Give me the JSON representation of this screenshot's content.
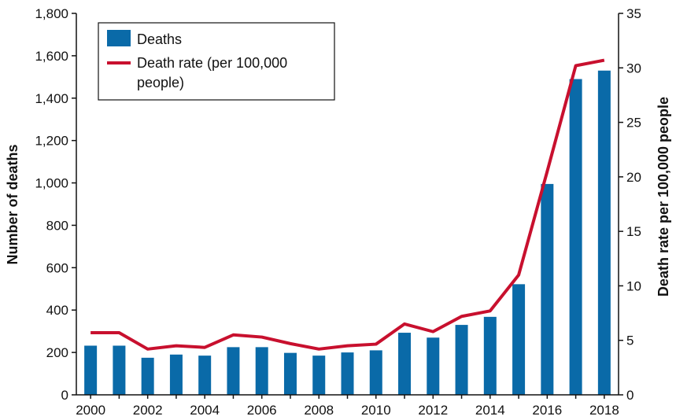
{
  "chart_data": {
    "type": "bar",
    "title": "",
    "categories": [
      "2000",
      "2001",
      "2002",
      "2003",
      "2004",
      "2005",
      "2006",
      "2007",
      "2008",
      "2009",
      "2010",
      "2011",
      "2012",
      "2013",
      "2014",
      "2015",
      "2016",
      "2017",
      "2018"
    ],
    "x_tick_labels": [
      "2000",
      "2002",
      "2004",
      "2006",
      "2008",
      "2010",
      "2012",
      "2014",
      "2016",
      "2018"
    ],
    "series": [
      {
        "name": "Deaths",
        "type": "bar",
        "axis": "left",
        "color": "#0a6aa8",
        "values": [
          232,
          232,
          175,
          190,
          185,
          225,
          225,
          198,
          185,
          200,
          210,
          293,
          270,
          330,
          368,
          522,
          995,
          1490,
          1530
        ]
      },
      {
        "name": "Death rate (per 100,000 people)",
        "legend_lines": [
          "Death rate (per 100,000",
          "people)"
        ],
        "type": "line",
        "axis": "right",
        "color": "#c8102e",
        "values": [
          5.7,
          5.7,
          4.2,
          4.5,
          4.35,
          5.5,
          5.3,
          4.7,
          4.2,
          4.5,
          4.65,
          6.5,
          5.8,
          7.2,
          7.7,
          11.0,
          20.5,
          30.2,
          30.7
        ]
      }
    ],
    "ylabel": "Number of deaths",
    "y2label": "Death rate per 100,000 people",
    "ylim": [
      0,
      1800
    ],
    "y2lim": [
      0,
      35
    ],
    "yticks": [
      "0",
      "200",
      "400",
      "600",
      "800",
      "1,000",
      "1,200",
      "1,400",
      "1,600",
      "1,800"
    ],
    "y2ticks": [
      "0",
      "5",
      "10",
      "15",
      "20",
      "25",
      "30",
      "35"
    ],
    "grid": false,
    "legend_position": "top-left"
  }
}
